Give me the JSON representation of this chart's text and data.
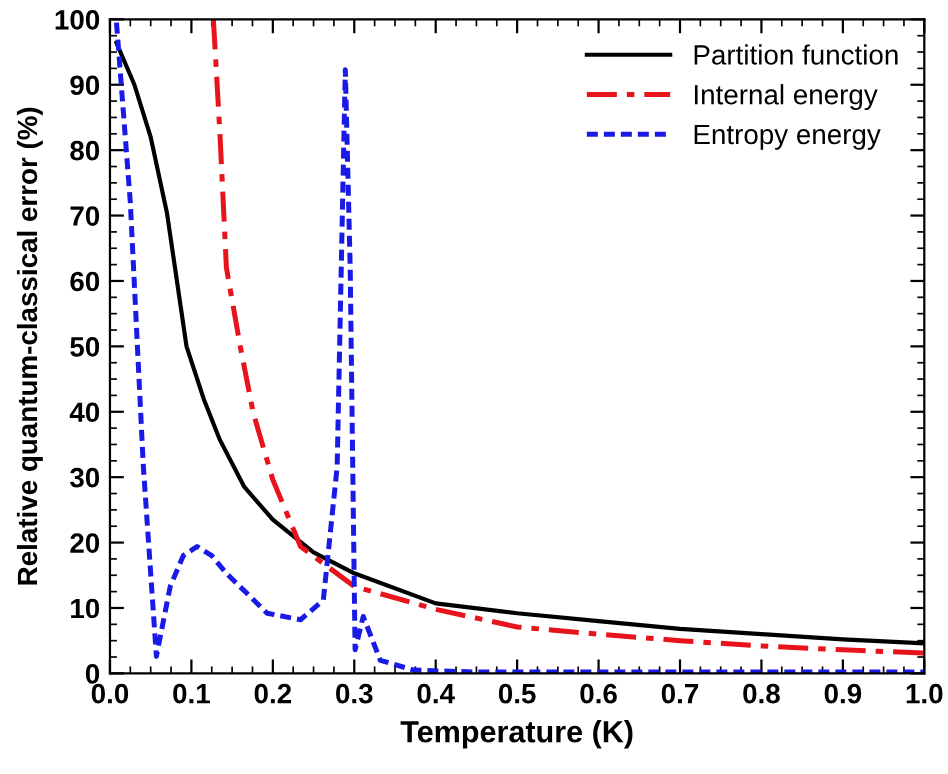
{
  "chart_data": {
    "type": "line",
    "xlabel": "Temperature (K)",
    "ylabel": "Relative quantum-classical error (%)",
    "xlim": [
      0.0,
      1.0
    ],
    "ylim": [
      0,
      100
    ],
    "xticks": [
      {
        "value": 0.0,
        "label": "0.0"
      },
      0.1,
      0.2,
      0.3,
      0.4,
      0.5,
      0.6,
      0.7,
      0.8,
      0.9,
      {
        "value": 1.0,
        "label": "1.0"
      }
    ],
    "yticks": [
      0,
      10,
      20,
      30,
      40,
      50,
      60,
      70,
      80,
      90,
      100
    ],
    "grid": false,
    "legend": "top right",
    "marker": "none",
    "series": [
      {
        "name": "Partition function",
        "color": "#000000",
        "line_style": "solid",
        "x": [
          0.008,
          0.03,
          0.05,
          0.07,
          0.094,
          0.115,
          0.135,
          0.165,
          0.2,
          0.25,
          0.3,
          0.4,
          0.5,
          0.6,
          0.7,
          0.8,
          0.9,
          1.0
        ],
        "values": [
          96.4,
          90,
          82,
          70.4,
          50,
          42,
          35.7,
          28.5,
          23.5,
          18.5,
          15.3,
          10.7,
          9.2,
          8,
          6.8,
          6,
          5.2,
          4.6
        ]
      },
      {
        "name": "Internal energy",
        "color": "#e8141c",
        "line_style": "dashdot",
        "x": [
          0.127,
          0.135,
          0.143,
          0.16,
          0.176,
          0.2,
          0.234,
          0.3,
          0.4,
          0.5,
          0.6,
          0.7,
          0.8,
          0.9,
          1.0
        ],
        "values": [
          100,
          82.6,
          62,
          50,
          39.8,
          29.6,
          19.4,
          13.3,
          9.8,
          7.1,
          6,
          5,
          4.2,
          3.6,
          3.1
        ]
      },
      {
        "name": "Entropy energy",
        "color": "#1a1ae6",
        "line_style": "dashed",
        "x": [
          0.008,
          0.025,
          0.041,
          0.057,
          0.074,
          0.09,
          0.107,
          0.125,
          0.143,
          0.193,
          0.234,
          0.262,
          0.279,
          0.289,
          0.295,
          0.301,
          0.311,
          0.332,
          0.373,
          0.45,
          0.6,
          0.8,
          1.0
        ],
        "values": [
          99.5,
          72,
          31.6,
          2.6,
          13.3,
          18,
          19.4,
          18,
          15.3,
          9.2,
          8.2,
          11.2,
          31.6,
          92.3,
          62,
          3.6,
          8.7,
          2,
          0.5,
          0.2,
          0.2,
          0.2,
          0.2
        ]
      }
    ]
  }
}
